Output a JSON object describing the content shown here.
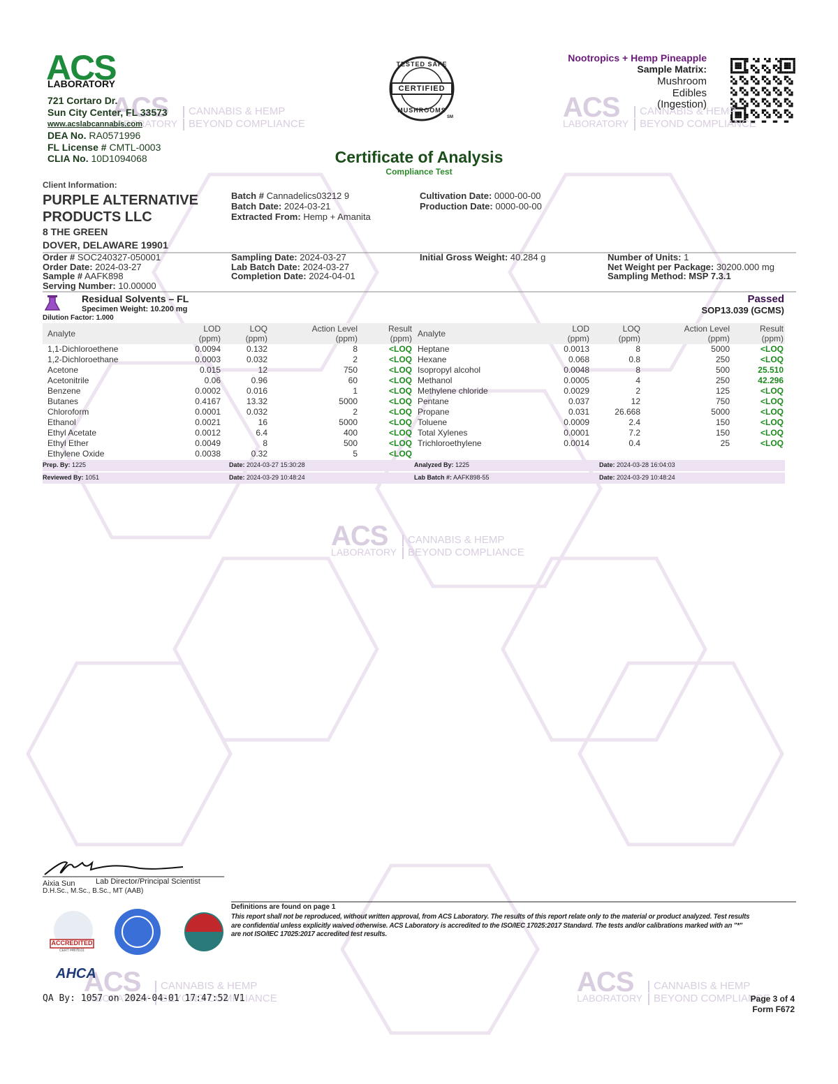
{
  "header": {
    "lab": {
      "logo": "ACS",
      "logo_sub": "LABORATORY",
      "address_1": "721 Cortaro Dr.",
      "address_2": "Sun City Center, FL 33573",
      "website": "www.acslabcannabis.com",
      "ids": [
        {
          "label": "DEA No.",
          "value": "RA0571996"
        },
        {
          "label": "FL License #",
          "value": "CMTL-0003"
        },
        {
          "label": "CLIA No.",
          "value": "10D1094068"
        }
      ]
    },
    "badge": {
      "top": "TESTED SAFE",
      "middle": "CERTIFIED",
      "bottom": "MUSHROOMS",
      "mark": "SM"
    },
    "product": {
      "name": "Nootropics + Hemp Pineapple",
      "matrix_label": "Sample Matrix:",
      "matrix": [
        "Mushroom",
        "Edibles",
        "(Ingestion)"
      ]
    },
    "title": "Certificate of Analysis",
    "subtitle": "Compliance Test"
  },
  "watermark": {
    "logo": "ACS",
    "logo_sub": "LABORATORY",
    "line_1": "CANNABIS & HEMP",
    "line_2": "BEYOND COMPLIANCE"
  },
  "client": {
    "label": "Client Information:",
    "name": [
      "PURPLE ALTERNATIVE",
      "PRODUCTS LLC"
    ],
    "address": [
      "8 THE GREEN",
      "DOVER, DELAWARE 19901"
    ]
  },
  "fields": [
    [
      {
        "label": "Batch #",
        "value": "Cannadelics03212 9"
      },
      {
        "label": "Batch Date:",
        "value": "2024-03-21"
      },
      {
        "label": "Extracted From:",
        "value": "Hemp + Amanita"
      }
    ],
    [
      {
        "label": "Cultivation Date:",
        "value": "0000-00-00"
      },
      {
        "label": "Production Date:",
        "value": "0000-00-00"
      }
    ],
    [
      {
        "label": "Order #",
        "value": "SOC240327-050001"
      },
      {
        "label": "Order Date:",
        "value": "2024-03-27"
      },
      {
        "label": "Sample #",
        "value": "AAFK898"
      },
      {
        "label": "Serving Number:",
        "value": "10.00000"
      }
    ],
    [
      {
        "label": "Sampling Date:",
        "value": "2024-03-27"
      },
      {
        "label": "Lab Batch Date:",
        "value": "2024-03-27"
      },
      {
        "label": "Completion Date:",
        "value": "2024-04-01"
      }
    ],
    [
      {
        "label": "Initial Gross Weight:",
        "value": "40.284 g"
      }
    ],
    [
      {
        "label": "Number of Units:",
        "value": "1"
      },
      {
        "label": "Net Weight per Package:",
        "value": "30200.000 mg"
      },
      {
        "label": "Sampling Method:",
        "value": "MSP 7.3.1"
      }
    ]
  ],
  "section": {
    "title": "Residual Solvents – FL",
    "specimen": "Specimen Weight: 10.200 mg",
    "dilution": "Dilution Factor: 1.000",
    "status": "Passed",
    "method": "SOP13.039 (GCMS)"
  },
  "table": {
    "headers": [
      {
        "name": "Analyte"
      },
      {
        "name": "LOD",
        "unit": "(ppm)"
      },
      {
        "name": "LOQ",
        "unit": "(ppm)"
      },
      {
        "name": "Action Level",
        "unit": "(ppm)"
      },
      {
        "name": "Result",
        "unit": "(ppm)"
      }
    ],
    "left": [
      [
        "1,1-Dichloroethene",
        "0.0094",
        "0.132",
        "8",
        "<LOQ"
      ],
      [
        "1,2-Dichloroethane",
        "0.0003",
        "0.032",
        "2",
        "<LOQ"
      ],
      [
        "Acetone",
        "0.015",
        "12",
        "750",
        "<LOQ"
      ],
      [
        "Acetonitrile",
        "0.06",
        "0.96",
        "60",
        "<LOQ"
      ],
      [
        "Benzene",
        "0.0002",
        "0.016",
        "1",
        "<LOQ"
      ],
      [
        "Butanes",
        "0.4167",
        "13.32",
        "5000",
        "<LOQ"
      ],
      [
        "Chloroform",
        "0.0001",
        "0.032",
        "2",
        "<LOQ"
      ],
      [
        "Ethanol",
        "0.0021",
        "16",
        "5000",
        "<LOQ"
      ],
      [
        "Ethyl Acetate",
        "0.0012",
        "6.4",
        "400",
        "<LOQ"
      ],
      [
        "Ethyl Ether",
        "0.0049",
        "8",
        "500",
        "<LOQ"
      ],
      [
        "Ethylene Oxide",
        "0.0038",
        "0.32",
        "5",
        "<LOQ"
      ]
    ],
    "right": [
      [
        "Heptane",
        "0.0013",
        "8",
        "5000",
        "<LOQ"
      ],
      [
        "Hexane",
        "0.068",
        "0.8",
        "250",
        "<LOQ"
      ],
      [
        "Isopropyl alcohol",
        "0.0048",
        "8",
        "500",
        "25.510"
      ],
      [
        "Methanol",
        "0.0005",
        "4",
        "250",
        "42.296"
      ],
      [
        "Methylene chloride",
        "0.0029",
        "2",
        "125",
        "<LOQ"
      ],
      [
        "Pentane",
        "0.037",
        "12",
        "750",
        "<LOQ"
      ],
      [
        "Propane",
        "0.031",
        "26.668",
        "5000",
        "<LOQ"
      ],
      [
        "Toluene",
        "0.0009",
        "2.4",
        "150",
        "<LOQ"
      ],
      [
        "Total Xylenes",
        "0.0001",
        "7.2",
        "150",
        "<LOQ"
      ],
      [
        "Trichloroethylene",
        "0.0014",
        "0.4",
        "25",
        "<LOQ"
      ]
    ]
  },
  "signoff": [
    [
      {
        "label": "Prep. By:",
        "value": "1225"
      },
      {
        "label": "Date:",
        "value": "2024-03-27 15:30:28"
      },
      {
        "label": "Analyzed By:",
        "value": "1225"
      },
      {
        "label": "Date:",
        "value": "2024-03-28 16:04:03"
      }
    ],
    [
      {
        "label": "Reviewed By:",
        "value": "1051"
      },
      {
        "label": "Date:",
        "value": "2024-03-29 10:48:24"
      },
      {
        "label": "Lab Batch #:",
        "value": "AAFK898-55"
      },
      {
        "label": "Date:",
        "value": "2024-03-29 10:48:24"
      }
    ]
  ],
  "signature": {
    "name": "Aixia Sun",
    "title": "Lab Director/Principal Scientist",
    "credentials": "D.H.Sc., M.Sc., B.Sc., MT (AAB)"
  },
  "notes": {
    "heading": "Definitions are found on page 1",
    "lines": [
      "This report shall not be reproduced, without written approval, from ACS Laboratory. The results of this report relate only to the material or product analyzed. Test results",
      "are confidential unless explicitly waived otherwise. ACS Laboratory is accredited to the ISO/IEC 17025:2017 Standard. The tests and/or calibrations marked with an \"*\"",
      "are not ISO/IEC 17025:2017 accredited test results."
    ]
  },
  "accreditation": {
    "a2la": "ACCREDITED",
    "cert": "CERT #4678.01",
    "ahca": "AHCA"
  },
  "footer": {
    "qa": "QA By: 1057 on 2024-04-01 17:47:52 V1",
    "page": "Page 3 of 4",
    "form": "Form F672"
  }
}
